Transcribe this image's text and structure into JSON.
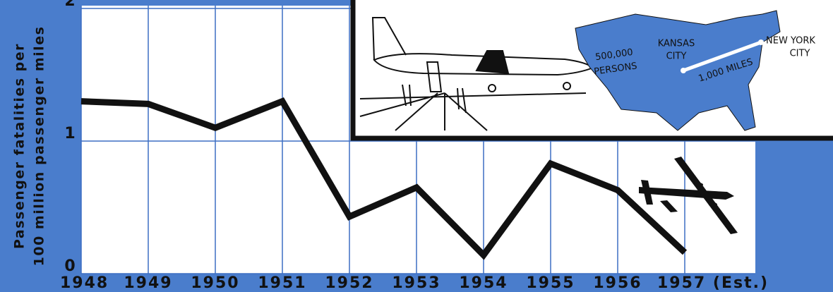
{
  "chart_data": {
    "type": "line",
    "ylabel": [
      "Passenger fatalities per",
      "100 million passenger miles"
    ],
    "categories": [
      "1948",
      "1949",
      "1950",
      "1951",
      "1952",
      "1953",
      "1954",
      "1955",
      "1956",
      "1957 (Est.)"
    ],
    "values": [
      1.3,
      1.28,
      1.1,
      1.3,
      0.43,
      0.65,
      0.14,
      0.83,
      0.63,
      0.16
    ],
    "color": "#111111",
    "ylim": [
      0,
      2
    ],
    "yticks": [
      0,
      1,
      2
    ],
    "grid": true,
    "annotations": [
      "500,000",
      "PERSONS",
      "KANSAS",
      "CITY",
      "1,000 MILES",
      "NEW YORK",
      "CITY"
    ]
  }
}
